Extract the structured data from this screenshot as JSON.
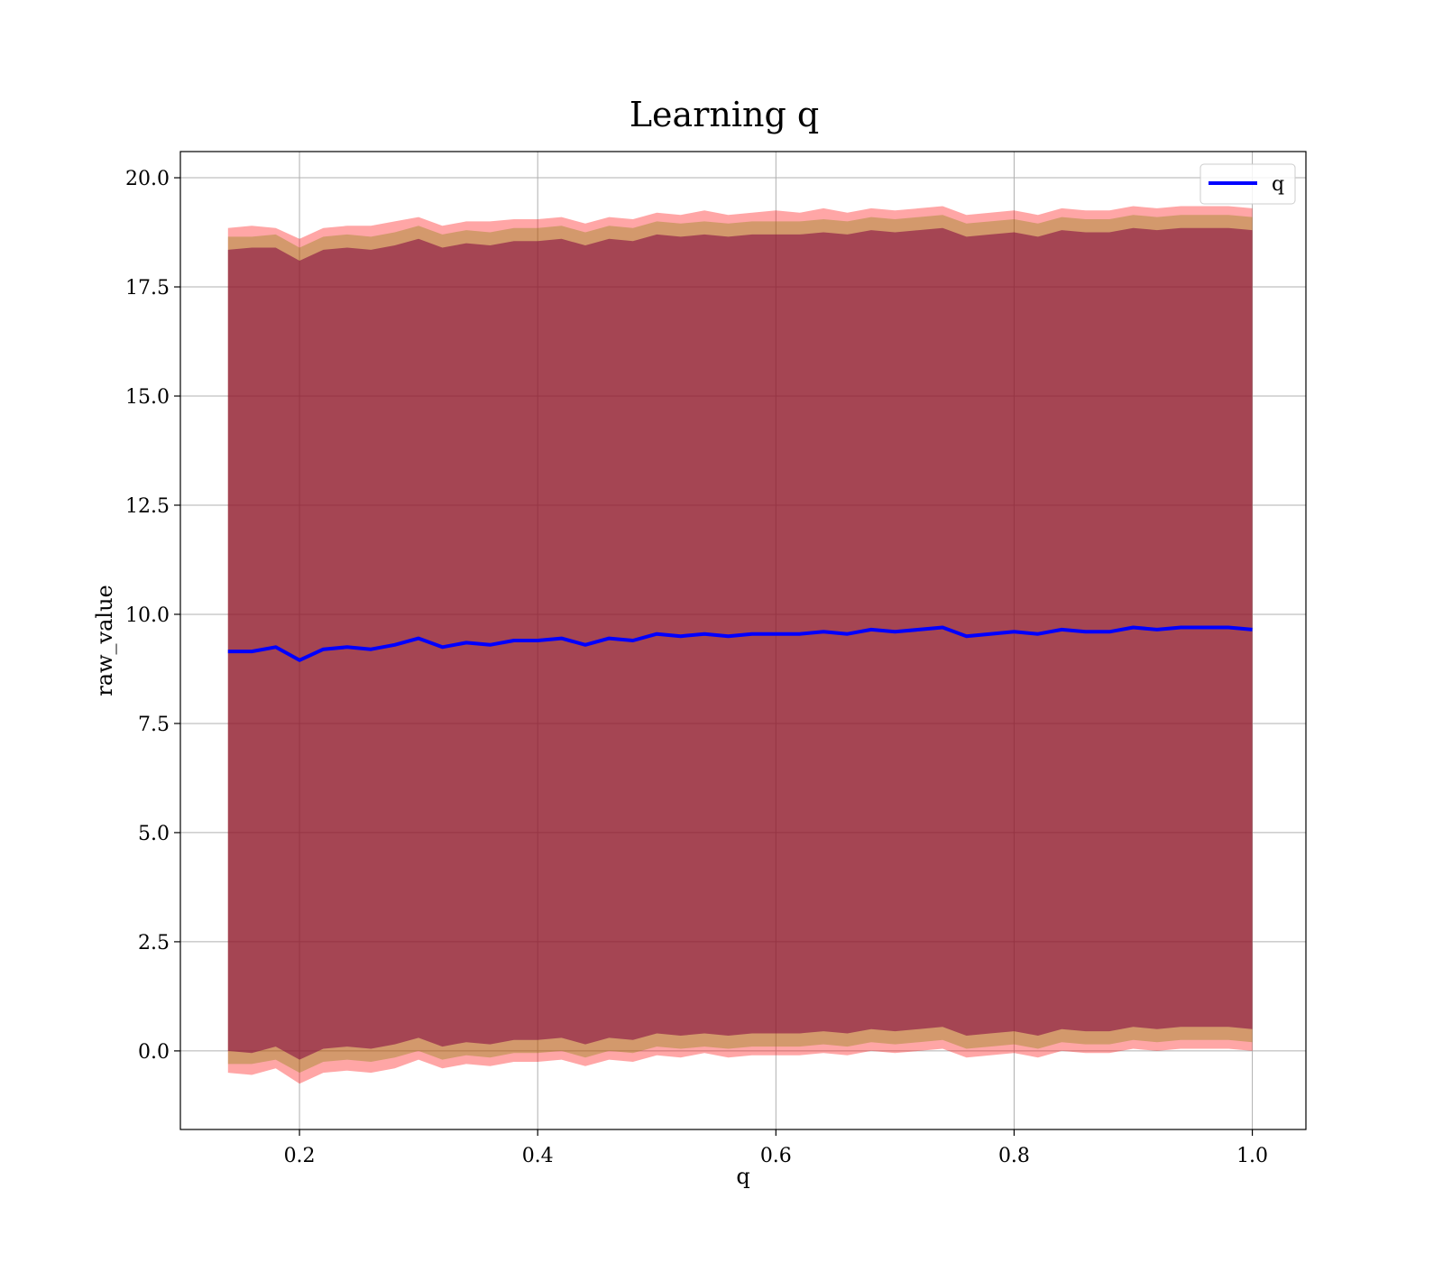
{
  "chart_data": {
    "type": "line",
    "title": "Learning q",
    "xlabel": "q",
    "ylabel": "raw_value",
    "xlim": [
      0.1,
      1.045
    ],
    "ylim": [
      -1.8,
      20.6
    ],
    "xticks": [
      0.2,
      0.4,
      0.6,
      0.8,
      1.0
    ],
    "xtick_labels": [
      "0.2",
      "0.4",
      "0.6",
      "0.8",
      "1.0"
    ],
    "yticks": [
      0.0,
      2.5,
      5.0,
      7.5,
      10.0,
      12.5,
      15.0,
      17.5,
      20.0
    ],
    "ytick_labels": [
      "0.0",
      "2.5",
      "5.0",
      "7.5",
      "10.0",
      "12.5",
      "15.0",
      "17.5",
      "20.0"
    ],
    "grid": true,
    "legend_position": "top-right",
    "series": [
      {
        "name": "q",
        "color": "#0000ff",
        "x": [
          0.14,
          0.16,
          0.18,
          0.2,
          0.22,
          0.24,
          0.26,
          0.28,
          0.3,
          0.32,
          0.34,
          0.36,
          0.38,
          0.4,
          0.42,
          0.44,
          0.46,
          0.48,
          0.5,
          0.52,
          0.54,
          0.56,
          0.58,
          0.6,
          0.62,
          0.64,
          0.66,
          0.68,
          0.7,
          0.72,
          0.74,
          0.76,
          0.78,
          0.8,
          0.82,
          0.84,
          0.86,
          0.88,
          0.9,
          0.92,
          0.94,
          0.96,
          0.98,
          1.0
        ],
        "y": [
          9.15,
          9.15,
          9.25,
          8.95,
          9.2,
          9.25,
          9.2,
          9.3,
          9.45,
          9.25,
          9.35,
          9.3,
          9.4,
          9.4,
          9.45,
          9.3,
          9.45,
          9.4,
          9.55,
          9.5,
          9.55,
          9.5,
          9.55,
          9.55,
          9.55,
          9.6,
          9.55,
          9.65,
          9.6,
          9.65,
          9.7,
          9.5,
          9.55,
          9.6,
          9.55,
          9.65,
          9.6,
          9.6,
          9.7,
          9.65,
          9.7,
          9.7,
          9.7,
          9.65
        ]
      }
    ],
    "bands": [
      {
        "color": "#ff0000",
        "opacity": 0.35,
        "upper": [
          18.85,
          18.9,
          18.85,
          18.6,
          18.85,
          18.9,
          18.9,
          19.0,
          19.1,
          18.9,
          19.0,
          19.0,
          19.05,
          19.05,
          19.1,
          18.95,
          19.1,
          19.05,
          19.2,
          19.15,
          19.25,
          19.15,
          19.2,
          19.25,
          19.2,
          19.3,
          19.2,
          19.3,
          19.25,
          19.3,
          19.35,
          19.15,
          19.2,
          19.25,
          19.15,
          19.3,
          19.25,
          19.25,
          19.35,
          19.3,
          19.35,
          19.35,
          19.35,
          19.3
        ],
        "lower": [
          -0.5,
          -0.55,
          -0.4,
          -0.75,
          -0.5,
          -0.45,
          -0.5,
          -0.4,
          -0.2,
          -0.4,
          -0.3,
          -0.35,
          -0.25,
          -0.25,
          -0.2,
          -0.35,
          -0.2,
          -0.25,
          -0.1,
          -0.15,
          -0.05,
          -0.15,
          -0.1,
          -0.1,
          -0.1,
          -0.05,
          -0.1,
          0.0,
          -0.05,
          0.0,
          0.05,
          -0.15,
          -0.1,
          -0.05,
          -0.15,
          0.0,
          -0.05,
          -0.05,
          0.05,
          0.0,
          0.05,
          0.05,
          0.05,
          0.0
        ]
      },
      {
        "color": "#808000",
        "opacity": 0.35,
        "upper": [
          18.65,
          18.65,
          18.7,
          18.4,
          18.65,
          18.7,
          18.65,
          18.75,
          18.9,
          18.7,
          18.8,
          18.75,
          18.85,
          18.85,
          18.9,
          18.75,
          18.9,
          18.85,
          19.0,
          18.95,
          19.0,
          18.95,
          19.0,
          19.0,
          19.0,
          19.05,
          19.0,
          19.1,
          19.05,
          19.1,
          19.15,
          18.95,
          19.0,
          19.05,
          18.95,
          19.1,
          19.05,
          19.05,
          19.15,
          19.1,
          19.15,
          19.15,
          19.15,
          19.1
        ],
        "lower": [
          -0.3,
          -0.3,
          -0.2,
          -0.5,
          -0.25,
          -0.2,
          -0.25,
          -0.15,
          0.0,
          -0.2,
          -0.1,
          -0.15,
          -0.05,
          -0.05,
          0.0,
          -0.15,
          0.0,
          -0.05,
          0.1,
          0.05,
          0.1,
          0.05,
          0.1,
          0.1,
          0.1,
          0.15,
          0.1,
          0.2,
          0.15,
          0.2,
          0.25,
          0.05,
          0.1,
          0.15,
          0.05,
          0.2,
          0.15,
          0.15,
          0.25,
          0.2,
          0.25,
          0.25,
          0.25,
          0.2
        ]
      },
      {
        "color": "#800040",
        "opacity": 0.55,
        "upper": [
          18.35,
          18.4,
          18.4,
          18.1,
          18.35,
          18.4,
          18.35,
          18.45,
          18.6,
          18.4,
          18.5,
          18.45,
          18.55,
          18.55,
          18.6,
          18.45,
          18.6,
          18.55,
          18.7,
          18.65,
          18.7,
          18.65,
          18.7,
          18.7,
          18.7,
          18.75,
          18.7,
          18.8,
          18.75,
          18.8,
          18.85,
          18.65,
          18.7,
          18.75,
          18.65,
          18.8,
          18.75,
          18.75,
          18.85,
          18.8,
          18.85,
          18.85,
          18.85,
          18.8
        ],
        "lower": [
          0.0,
          -0.05,
          0.1,
          -0.2,
          0.05,
          0.1,
          0.05,
          0.15,
          0.3,
          0.1,
          0.2,
          0.15,
          0.25,
          0.25,
          0.3,
          0.15,
          0.3,
          0.25,
          0.4,
          0.35,
          0.4,
          0.35,
          0.4,
          0.4,
          0.4,
          0.45,
          0.4,
          0.5,
          0.45,
          0.5,
          0.55,
          0.35,
          0.4,
          0.45,
          0.35,
          0.5,
          0.45,
          0.45,
          0.55,
          0.5,
          0.55,
          0.55,
          0.55,
          0.5
        ]
      }
    ]
  }
}
